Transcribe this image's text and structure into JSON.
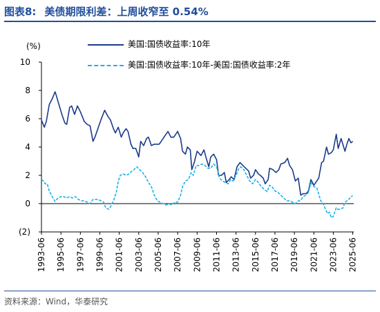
{
  "header": {
    "figure_no": "图表8:",
    "title": "美债期限利差：上周收窄至 0.54%"
  },
  "chart_data": {
    "type": "line",
    "unit_label": "(%)",
    "ylim": [
      -2,
      10
    ],
    "y_ticks": [
      "(2)",
      "0",
      "2",
      "4",
      "6",
      "8",
      "10"
    ],
    "y_tick_values": [
      -2,
      0,
      2,
      4,
      6,
      8,
      10
    ],
    "x_range": [
      1993.5,
      2025.6
    ],
    "x_ticks": [
      "1993-06",
      "1995-06",
      "1997-06",
      "1999-06",
      "2001-06",
      "2003-06",
      "2005-06",
      "2007-06",
      "2009-06",
      "2011-06",
      "2013-06",
      "2015-06",
      "2017-06",
      "2019-06",
      "2021-06",
      "2023-06",
      "2025-06"
    ],
    "x_tick_values": [
      1993.5,
      1995.5,
      1997.5,
      1999.5,
      2001.5,
      2003.5,
      2005.5,
      2007.5,
      2009.5,
      2011.5,
      2013.5,
      2015.5,
      2017.5,
      2019.5,
      2021.5,
      2023.5,
      2025.5
    ],
    "grid": false,
    "legend_placement": "top",
    "series": [
      {
        "name": "美国:国债收益率:10年",
        "color": "#1a3a8a",
        "style": "solid",
        "points": [
          [
            1993.5,
            5.9
          ],
          [
            1993.8,
            5.4
          ],
          [
            1994.0,
            5.8
          ],
          [
            1994.3,
            7.0
          ],
          [
            1994.6,
            7.4
          ],
          [
            1994.9,
            7.9
          ],
          [
            1995.0,
            7.7
          ],
          [
            1995.3,
            7.0
          ],
          [
            1995.6,
            6.3
          ],
          [
            1995.9,
            5.7
          ],
          [
            1996.1,
            5.6
          ],
          [
            1996.4,
            6.8
          ],
          [
            1996.6,
            6.9
          ],
          [
            1996.9,
            6.3
          ],
          [
            1997.2,
            6.9
          ],
          [
            1997.5,
            6.5
          ],
          [
            1997.9,
            5.8
          ],
          [
            1998.2,
            5.6
          ],
          [
            1998.5,
            5.5
          ],
          [
            1998.8,
            4.4
          ],
          [
            1999.0,
            4.7
          ],
          [
            1999.3,
            5.3
          ],
          [
            1999.6,
            5.9
          ],
          [
            2000.0,
            6.6
          ],
          [
            2000.3,
            6.2
          ],
          [
            2000.6,
            5.9
          ],
          [
            2000.9,
            5.3
          ],
          [
            2001.1,
            5.0
          ],
          [
            2001.4,
            5.4
          ],
          [
            2001.7,
            4.7
          ],
          [
            2001.9,
            5.0
          ],
          [
            2002.2,
            5.3
          ],
          [
            2002.4,
            5.1
          ],
          [
            2002.7,
            4.2
          ],
          [
            2002.9,
            3.9
          ],
          [
            2003.2,
            3.9
          ],
          [
            2003.5,
            3.3
          ],
          [
            2003.7,
            4.4
          ],
          [
            2004.0,
            4.1
          ],
          [
            2004.3,
            4.6
          ],
          [
            2004.5,
            4.7
          ],
          [
            2004.8,
            4.1
          ],
          [
            2005.1,
            4.2
          ],
          [
            2005.4,
            4.2
          ],
          [
            2005.6,
            4.2
          ],
          [
            2005.9,
            4.5
          ],
          [
            2006.2,
            4.8
          ],
          [
            2006.5,
            5.1
          ],
          [
            2006.8,
            4.7
          ],
          [
            2007.1,
            4.7
          ],
          [
            2007.5,
            5.1
          ],
          [
            2007.8,
            4.6
          ],
          [
            2008.0,
            3.7
          ],
          [
            2008.3,
            3.5
          ],
          [
            2008.5,
            4.0
          ],
          [
            2008.8,
            3.8
          ],
          [
            2008.95,
            2.4
          ],
          [
            2009.2,
            2.9
          ],
          [
            2009.5,
            3.7
          ],
          [
            2009.9,
            3.4
          ],
          [
            2010.2,
            3.8
          ],
          [
            2010.4,
            3.3
          ],
          [
            2010.7,
            2.6
          ],
          [
            2010.9,
            3.3
          ],
          [
            2011.2,
            3.5
          ],
          [
            2011.5,
            3.1
          ],
          [
            2011.7,
            2.0
          ],
          [
            2012.0,
            2.0
          ],
          [
            2012.3,
            2.2
          ],
          [
            2012.5,
            1.5
          ],
          [
            2012.8,
            1.7
          ],
          [
            2013.0,
            1.9
          ],
          [
            2013.3,
            1.7
          ],
          [
            2013.6,
            2.6
          ],
          [
            2013.9,
            2.9
          ],
          [
            2014.2,
            2.7
          ],
          [
            2014.5,
            2.5
          ],
          [
            2014.8,
            2.3
          ],
          [
            2015.0,
            1.8
          ],
          [
            2015.3,
            2.0
          ],
          [
            2015.5,
            2.4
          ],
          [
            2015.8,
            2.1
          ],
          [
            2016.0,
            2.0
          ],
          [
            2016.3,
            1.8
          ],
          [
            2016.5,
            1.4
          ],
          [
            2016.8,
            1.7
          ],
          [
            2016.95,
            2.5
          ],
          [
            2017.3,
            2.4
          ],
          [
            2017.6,
            2.2
          ],
          [
            2017.9,
            2.4
          ],
          [
            2018.1,
            2.8
          ],
          [
            2018.5,
            2.9
          ],
          [
            2018.8,
            3.2
          ],
          [
            2019.0,
            2.7
          ],
          [
            2019.3,
            2.4
          ],
          [
            2019.6,
            1.6
          ],
          [
            2019.9,
            1.8
          ],
          [
            2020.15,
            0.6
          ],
          [
            2020.4,
            0.7
          ],
          [
            2020.7,
            0.7
          ],
          [
            2020.95,
            0.9
          ],
          [
            2021.2,
            1.7
          ],
          [
            2021.5,
            1.3
          ],
          [
            2021.8,
            1.6
          ],
          [
            2022.0,
            1.8
          ],
          [
            2022.3,
            2.9
          ],
          [
            2022.5,
            3.0
          ],
          [
            2022.8,
            4.0
          ],
          [
            2023.0,
            3.5
          ],
          [
            2023.3,
            3.6
          ],
          [
            2023.5,
            3.8
          ],
          [
            2023.8,
            4.9
          ],
          [
            2024.0,
            3.9
          ],
          [
            2024.3,
            4.6
          ],
          [
            2024.7,
            3.7
          ],
          [
            2024.9,
            4.2
          ],
          [
            2025.1,
            4.6
          ],
          [
            2025.3,
            4.3
          ],
          [
            2025.5,
            4.4
          ]
        ]
      },
      {
        "name": "美国:国债收益率:10年-美国:国债收益率:2年",
        "color": "#1ab0e8",
        "style": "dashed",
        "points": [
          [
            1993.5,
            1.7
          ],
          [
            1993.7,
            1.6
          ],
          [
            1993.9,
            1.4
          ],
          [
            1994.1,
            1.4
          ],
          [
            1994.3,
            0.9
          ],
          [
            1994.6,
            0.5
          ],
          [
            1994.9,
            0.15
          ],
          [
            1995.2,
            0.4
          ],
          [
            1995.5,
            0.5
          ],
          [
            1995.8,
            0.5
          ],
          [
            1996.1,
            0.4
          ],
          [
            1996.4,
            0.5
          ],
          [
            1996.7,
            0.4
          ],
          [
            1997.0,
            0.5
          ],
          [
            1997.3,
            0.3
          ],
          [
            1997.6,
            0.2
          ],
          [
            1997.9,
            0.2
          ],
          [
            1998.2,
            0.1
          ],
          [
            1998.5,
            0.0
          ],
          [
            1998.8,
            0.3
          ],
          [
            1999.0,
            0.3
          ],
          [
            1999.3,
            0.3
          ],
          [
            1999.6,
            0.2
          ],
          [
            1999.9,
            0.1
          ],
          [
            2000.1,
            -0.3
          ],
          [
            2000.4,
            -0.4
          ],
          [
            2000.7,
            -0.1
          ],
          [
            2000.95,
            0.3
          ],
          [
            2001.2,
            0.8
          ],
          [
            2001.4,
            1.6
          ],
          [
            2001.6,
            2.0
          ],
          [
            2001.9,
            2.1
          ],
          [
            2002.2,
            2.0
          ],
          [
            2002.5,
            2.1
          ],
          [
            2002.8,
            2.3
          ],
          [
            2003.0,
            2.4
          ],
          [
            2003.3,
            2.6
          ],
          [
            2003.6,
            2.4
          ],
          [
            2003.9,
            2.2
          ],
          [
            2004.2,
            1.9
          ],
          [
            2004.5,
            1.5
          ],
          [
            2004.8,
            1.2
          ],
          [
            2005.1,
            0.6
          ],
          [
            2005.4,
            0.2
          ],
          [
            2005.7,
            0.1
          ],
          [
            2006.0,
            0.0
          ],
          [
            2006.3,
            -0.1
          ],
          [
            2006.6,
            0.0
          ],
          [
            2006.9,
            -0.1
          ],
          [
            2007.2,
            0.1
          ],
          [
            2007.5,
            0.1
          ],
          [
            2007.8,
            0.6
          ],
          [
            2008.0,
            1.2
          ],
          [
            2008.3,
            1.6
          ],
          [
            2008.6,
            1.7
          ],
          [
            2008.9,
            2.2
          ],
          [
            2009.1,
            2.0
          ],
          [
            2009.4,
            2.7
          ],
          [
            2009.7,
            2.7
          ],
          [
            2010.0,
            2.8
          ],
          [
            2010.3,
            2.7
          ],
          [
            2010.6,
            2.5
          ],
          [
            2010.9,
            2.5
          ],
          [
            2011.2,
            2.8
          ],
          [
            2011.5,
            2.6
          ],
          [
            2011.8,
            1.8
          ],
          [
            2012.1,
            1.6
          ],
          [
            2012.4,
            1.5
          ],
          [
            2012.7,
            1.4
          ],
          [
            2012.95,
            1.7
          ],
          [
            2013.2,
            1.6
          ],
          [
            2013.5,
            2.0
          ],
          [
            2013.8,
            2.5
          ],
          [
            2014.0,
            2.6
          ],
          [
            2014.3,
            2.4
          ],
          [
            2014.6,
            2.0
          ],
          [
            2014.9,
            1.6
          ],
          [
            2015.2,
            1.4
          ],
          [
            2015.5,
            1.7
          ],
          [
            2015.8,
            1.5
          ],
          [
            2016.1,
            1.2
          ],
          [
            2016.4,
            1.0
          ],
          [
            2016.7,
            0.85
          ],
          [
            2016.95,
            1.3
          ],
          [
            2017.2,
            1.2
          ],
          [
            2017.5,
            0.9
          ],
          [
            2017.8,
            0.8
          ],
          [
            2018.1,
            0.6
          ],
          [
            2018.4,
            0.4
          ],
          [
            2018.7,
            0.2
          ],
          [
            2019.0,
            0.2
          ],
          [
            2019.3,
            0.1
          ],
          [
            2019.6,
            0.0
          ],
          [
            2019.9,
            0.2
          ],
          [
            2020.1,
            0.2
          ],
          [
            2020.4,
            0.5
          ],
          [
            2020.7,
            0.6
          ],
          [
            2020.95,
            0.8
          ],
          [
            2021.2,
            1.5
          ],
          [
            2021.5,
            1.2
          ],
          [
            2021.8,
            1.1
          ],
          [
            2022.0,
            0.7
          ],
          [
            2022.2,
            0.2
          ],
          [
            2022.4,
            0.1
          ],
          [
            2022.7,
            -0.4
          ],
          [
            2022.9,
            -0.7
          ],
          [
            2023.1,
            -0.6
          ],
          [
            2023.3,
            -1.0
          ],
          [
            2023.5,
            -0.9
          ],
          [
            2023.8,
            -0.3
          ],
          [
            2023.95,
            -0.4
          ],
          [
            2024.2,
            -0.4
          ],
          [
            2024.5,
            -0.3
          ],
          [
            2024.7,
            0.1
          ],
          [
            2024.9,
            0.2
          ],
          [
            2025.1,
            0.3
          ],
          [
            2025.3,
            0.5
          ],
          [
            2025.5,
            0.54
          ]
        ]
      }
    ]
  },
  "footer": {
    "source": "资料来源：Wind，华泰研究"
  }
}
